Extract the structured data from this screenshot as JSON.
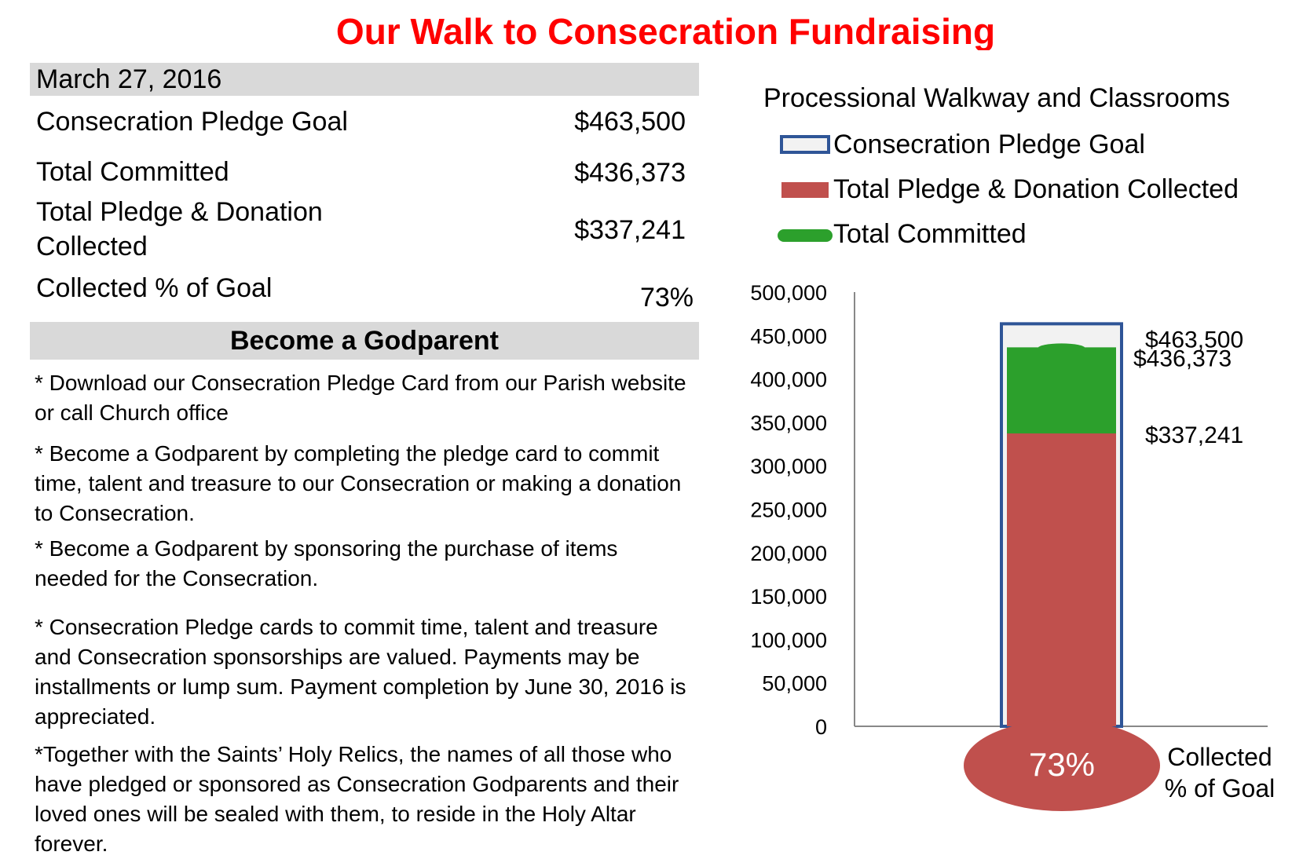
{
  "title": "Our Walk to Consecration Fundraising",
  "summary": {
    "date": "March 27, 2016",
    "rows": [
      {
        "label": "Consecration Pledge Goal",
        "value": "$463,500"
      },
      {
        "label": "Total Committed",
        "value": "$436,373"
      },
      {
        "label": "Total Pledge & Donation Collected",
        "value": "$337,241"
      },
      {
        "label": "Collected % of Goal",
        "value": "73%"
      }
    ]
  },
  "godparent": {
    "heading": "Become a Godparent",
    "paragraphs": [
      "* Download our Consecration Pledge Card from our Parish website or call Church office",
      "* Become a Godparent by completing the pledge card to commit time, talent and treasure to our Consecration or making a donation to Consecration.",
      "* Become a Godparent by sponsoring the purchase of items needed for the Consecration.",
      "* Consecration Pledge cards to commit time, talent and treasure and Consecration sponsorships are valued. Payments may be installments or lump sum. Payment completion by June 30, 2016 is appreciated.",
      "*Together with the Saints’ Holy Relics, the names of all those who have pledged or sponsored as Consecration Godparents and their loved ones will be sealed with them, to reside in the Holy Altar forever."
    ]
  },
  "colors": {
    "title": "#ff0000",
    "goal_fill": "#f2f2f2",
    "goal_border": "#2f5597",
    "collected": "#c0504d",
    "committed": "#2ca02c",
    "header_bar": "#d9d9d9"
  },
  "chart_data": {
    "type": "bar",
    "subtitle": "Processional Walkway and Classrooms",
    "legend": [
      "Consecration Pledge Goal",
      "Total Pledge & Donation Collected",
      "Total Committed"
    ],
    "legend_position": "top",
    "series": [
      {
        "name": "Consecration Pledge Goal",
        "value": 463500,
        "label": "$463,500"
      },
      {
        "name": "Total Pledge & Donation Collected",
        "value": 337241,
        "label": "$337,241"
      },
      {
        "name": "Total Committed",
        "value": 436373,
        "label": "$436,373"
      }
    ],
    "ylim": [
      0,
      500000
    ],
    "yticks": [
      0,
      50000,
      100000,
      150000,
      200000,
      250000,
      300000,
      350000,
      400000,
      450000,
      500000
    ],
    "ytick_labels": [
      "0",
      "50,000",
      "100,000",
      "150,000",
      "200,000",
      "250,000",
      "300,000",
      "350,000",
      "400,000",
      "450,000",
      "500,000"
    ],
    "bulb_label": "73%",
    "bulb_caption_lines": [
      "Collected",
      "% of Goal"
    ],
    "grid": false
  }
}
